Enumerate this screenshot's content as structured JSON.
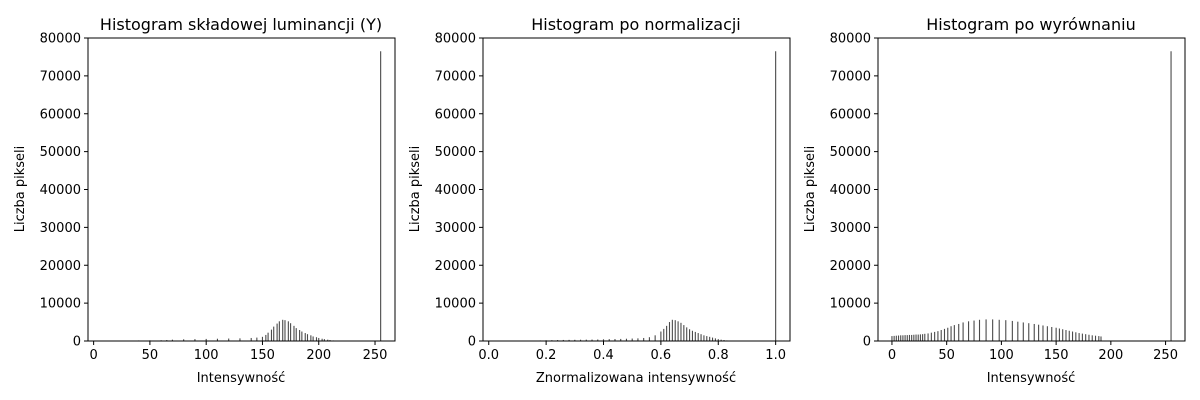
{
  "chart_data": [
    {
      "type": "bar",
      "title": "Histogram składowej luminancji (Y)",
      "xlabel": "Intensywność",
      "ylabel": "Liczba pikseli",
      "xlim": [
        -5,
        267.75
      ],
      "ylim": [
        0,
        80000
      ],
      "xticks": [
        0,
        50,
        100,
        150,
        200,
        250
      ],
      "xtick_labels": [
        "0",
        "50",
        "100",
        "150",
        "200",
        "250"
      ],
      "yticks": [
        0,
        10000,
        20000,
        30000,
        40000,
        50000,
        60000,
        70000,
        80000
      ],
      "ytick_labels": [
        "0",
        "10000",
        "20000",
        "30000",
        "40000",
        "50000",
        "60000",
        "70000",
        "80000"
      ],
      "grid": false,
      "bar_color": "#4a4a4a",
      "x": [
        0,
        10,
        20,
        30,
        40,
        50,
        60,
        65,
        70,
        80,
        90,
        100,
        110,
        120,
        130,
        140,
        145,
        150,
        153,
        155,
        158,
        160,
        163,
        165,
        168,
        170,
        173,
        175,
        178,
        180,
        183,
        185,
        188,
        190,
        193,
        195,
        198,
        200,
        203,
        205,
        208,
        210,
        213,
        215,
        218,
        220,
        223,
        225,
        230,
        240,
        250,
        255
      ],
      "values": [
        50,
        80,
        100,
        120,
        150,
        180,
        200,
        250,
        350,
        450,
        500,
        550,
        600,
        650,
        700,
        800,
        900,
        1100,
        1600,
        2200,
        3000,
        3800,
        4600,
        5200,
        5600,
        5500,
        5200,
        4700,
        4000,
        3400,
        2900,
        2500,
        2100,
        1800,
        1500,
        1200,
        1000,
        800,
        600,
        500,
        350,
        250,
        150,
        100,
        60,
        40,
        20,
        10,
        5,
        0,
        0,
        76500
      ]
    },
    {
      "type": "bar",
      "title": "Histogram po normalizacji",
      "xlabel": "Znormalizowana intensywność",
      "ylabel": "Liczba pikseli",
      "xlim": [
        -0.02,
        1.05
      ],
      "ylim": [
        0,
        80000
      ],
      "xticks": [
        0,
        0.2,
        0.4,
        0.6,
        0.8,
        1.0
      ],
      "xtick_labels": [
        "0.0",
        "0.2",
        "0.4",
        "0.6",
        "0.8",
        "1.0"
      ],
      "yticks": [
        0,
        10000,
        20000,
        30000,
        40000,
        50000,
        60000,
        70000,
        80000
      ],
      "ytick_labels": [
        "0",
        "10000",
        "20000",
        "30000",
        "40000",
        "50000",
        "60000",
        "70000",
        "80000"
      ],
      "grid": false,
      "bar_color": "#4a4a4a",
      "x": [
        0.18,
        0.2,
        0.22,
        0.24,
        0.26,
        0.28,
        0.3,
        0.32,
        0.34,
        0.36,
        0.38,
        0.4,
        0.42,
        0.44,
        0.46,
        0.48,
        0.5,
        0.52,
        0.54,
        0.56,
        0.58,
        0.6,
        0.61,
        0.62,
        0.63,
        0.64,
        0.65,
        0.66,
        0.67,
        0.68,
        0.69,
        0.7,
        0.71,
        0.72,
        0.73,
        0.74,
        0.75,
        0.76,
        0.77,
        0.78,
        0.79,
        0.8,
        0.81,
        0.82,
        0.83,
        0.84,
        0.85,
        1.0
      ],
      "values": [
        150,
        200,
        220,
        250,
        280,
        300,
        320,
        340,
        360,
        380,
        400,
        450,
        500,
        520,
        550,
        600,
        650,
        700,
        800,
        1000,
        1500,
        2500,
        3200,
        4000,
        5000,
        5600,
        5500,
        5200,
        4800,
        4200,
        3600,
        3100,
        2700,
        2400,
        2100,
        1800,
        1500,
        1300,
        1100,
        900,
        700,
        500,
        350,
        250,
        150,
        80,
        30,
        76500
      ]
    },
    {
      "type": "bar",
      "title": "Histogram po wyrównaniu",
      "xlabel": "Intensywność",
      "ylabel": "Liczba pikseli",
      "xlim": [
        -12.75,
        267.75
      ],
      "ylim": [
        0,
        80000
      ],
      "xticks": [
        0,
        50,
        100,
        150,
        200,
        250
      ],
      "xtick_labels": [
        "0",
        "50",
        "100",
        "150",
        "200",
        "250"
      ],
      "yticks": [
        0,
        10000,
        20000,
        30000,
        40000,
        50000,
        60000,
        70000,
        80000
      ],
      "ytick_labels": [
        "0",
        "10000",
        "20000",
        "30000",
        "40000",
        "50000",
        "60000",
        "70000",
        "80000"
      ],
      "grid": false,
      "bar_color": "#4a4a4a",
      "x": [
        0,
        2,
        4,
        6,
        8,
        10,
        12,
        14,
        16,
        18,
        20,
        22,
        24,
        26,
        28,
        30,
        33,
        36,
        39,
        42,
        45,
        48,
        51,
        54,
        57,
        61,
        65,
        70,
        75,
        80,
        86,
        92,
        98,
        104,
        110,
        115,
        120,
        125,
        130,
        134,
        138,
        142,
        146,
        150,
        153,
        156,
        159,
        162,
        165,
        168,
        171,
        174,
        177,
        180,
        183,
        186,
        189,
        191,
        255
      ],
      "values": [
        1300,
        1350,
        1400,
        1450,
        1500,
        1500,
        1550,
        1550,
        1600,
        1600,
        1650,
        1700,
        1700,
        1750,
        1800,
        1900,
        2000,
        2200,
        2400,
        2600,
        2900,
        3200,
        3500,
        3900,
        4200,
        4500,
        4900,
        5200,
        5400,
        5600,
        5700,
        5700,
        5600,
        5500,
        5300,
        5100,
        4900,
        4700,
        4500,
        4300,
        4100,
        3900,
        3700,
        3500,
        3300,
        3100,
        2900,
        2700,
        2500,
        2300,
        2100,
        1950,
        1800,
        1650,
        1500,
        1400,
        1300,
        1200,
        76500
      ]
    }
  ]
}
